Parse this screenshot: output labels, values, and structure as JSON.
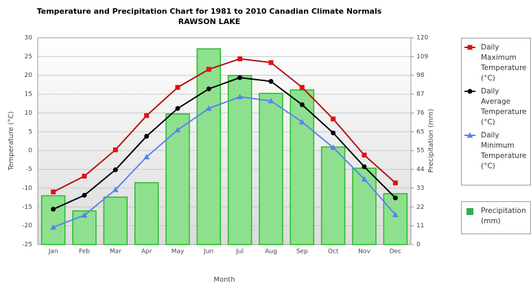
{
  "chart_data": {
    "type": "combo",
    "title": "Temperature and Precipitation Chart for 1981 to 2010 Canadian Climate Normals",
    "subtitle": "RAWSON LAKE",
    "x_label": "Month",
    "y_label": "Temperature (°C)",
    "y2_label": "Precipitation (mm)",
    "categories": [
      "Jan",
      "Feb",
      "Mar",
      "Apr",
      "May",
      "Jun",
      "Jul",
      "Aug",
      "Sep",
      "Oct",
      "Nov",
      "Dec"
    ],
    "ylim": [
      -25,
      30
    ],
    "yticks": [
      -25,
      -20,
      -15,
      -10,
      -5,
      0,
      5,
      10,
      15,
      20,
      25,
      30
    ],
    "y2lim": [
      0,
      120
    ],
    "y2ticks": [
      0,
      {
        "value": 10.91,
        "label": "11"
      },
      {
        "value": 21.82,
        "label": "22"
      },
      {
        "value": 32.73,
        "label": "33"
      },
      {
        "value": 43.64,
        "label": "44"
      },
      {
        "value": 54.55,
        "label": "55"
      },
      {
        "value": 65.45,
        "label": "65"
      },
      {
        "value": 76.36,
        "label": "76"
      },
      {
        "value": 87.27,
        "label": "87"
      },
      {
        "value": 98.18,
        "label": "98"
      },
      {
        "value": 109.09,
        "label": "109"
      },
      120
    ],
    "grid": true,
    "series": [
      {
        "name": "Precipitation (mm)",
        "type": "bar",
        "axis": "y2",
        "color": "#8ee08e",
        "values": [
          28.3,
          19.5,
          27.5,
          35.9,
          75.8,
          113.6,
          98.1,
          87.7,
          89.7,
          56.6,
          44.3,
          29.5
        ]
      },
      {
        "name": "Daily Maximum Temperature (°C)",
        "type": "line",
        "marker": "square",
        "color": "#b01010",
        "values": [
          -11.0,
          -6.8,
          0.2,
          9.3,
          16.8,
          21.6,
          24.4,
          23.4,
          16.8,
          8.4,
          -1.2,
          -8.6
        ]
      },
      {
        "name": "Daily Average Temperature (°C)",
        "type": "line",
        "marker": "circle",
        "color": "#000000",
        "values": [
          -15.6,
          -11.9,
          -5.1,
          3.8,
          11.2,
          16.4,
          19.4,
          18.4,
          12.2,
          4.7,
          -4.3,
          -12.6
        ]
      },
      {
        "name": "Daily Minimum Temperature (°C)",
        "type": "line",
        "marker": "triangle",
        "color": "#5b82f0",
        "values": [
          -20.4,
          -17.2,
          -10.4,
          -1.7,
          5.5,
          11.2,
          14.3,
          13.2,
          7.6,
          0.8,
          -7.6,
          -17.1
        ]
      }
    ]
  }
}
